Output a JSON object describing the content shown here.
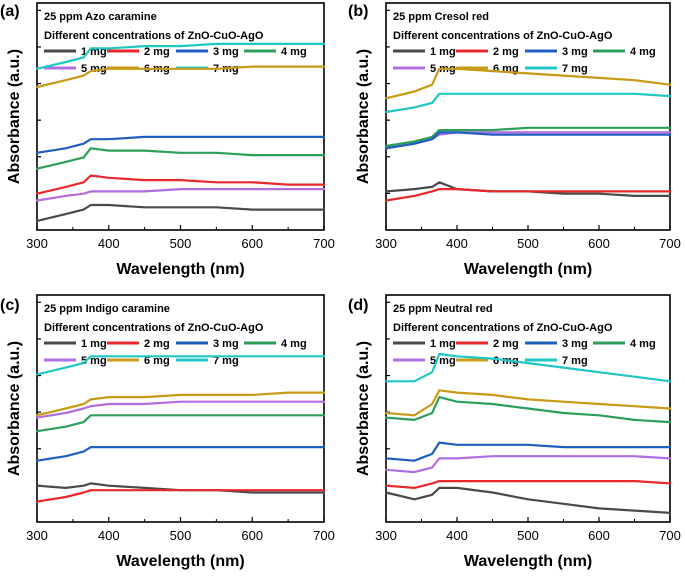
{
  "figure": {
    "xlabel": "Wavelength (nm)",
    "ylabel": "Absorbance (a.u.)",
    "legend_title": "Different concentrations of ZnO-CuO-AgO",
    "series_colors": {
      "1 mg": "#4a4a4a",
      "2 mg": "#e8282b",
      "3 mg": "#1f5fbf",
      "4 mg": "#2e9e5b",
      "5 mg": "#b06fe0",
      "6 mg": "#c89a16",
      "7 mg": "#1fc7c7"
    }
  },
  "chart_data": [
    {
      "type": "line",
      "panel_label": "(a)",
      "title": "25 ppm Azo caramine",
      "xlabel": "Wavelength (nm)",
      "ylabel": "Absorbance (a.u.)",
      "xlim": [
        300,
        700
      ],
      "ylim": [
        0,
        1
      ],
      "xticks": [
        300,
        400,
        500,
        600,
        700
      ],
      "x": [
        300,
        340,
        365,
        375,
        400,
        450,
        500,
        550,
        600,
        650,
        700
      ],
      "series": [
        {
          "name": "1 mg",
          "values": [
            0.04,
            0.07,
            0.09,
            0.11,
            0.11,
            0.1,
            0.1,
            0.1,
            0.09,
            0.09,
            0.09
          ]
        },
        {
          "name": "2 mg",
          "values": [
            0.16,
            0.19,
            0.21,
            0.24,
            0.23,
            0.22,
            0.22,
            0.21,
            0.21,
            0.2,
            0.2
          ]
        },
        {
          "name": "5 mg",
          "values": [
            0.13,
            0.15,
            0.16,
            0.17,
            0.17,
            0.17,
            0.18,
            0.18,
            0.18,
            0.18,
            0.18
          ]
        },
        {
          "name": "4 mg",
          "values": [
            0.27,
            0.3,
            0.32,
            0.36,
            0.35,
            0.35,
            0.34,
            0.34,
            0.33,
            0.33,
            0.33
          ]
        },
        {
          "name": "3 mg",
          "values": [
            0.34,
            0.36,
            0.38,
            0.4,
            0.4,
            0.41,
            0.41,
            0.41,
            0.41,
            0.41,
            0.41
          ]
        },
        {
          "name": "6 mg",
          "values": [
            0.63,
            0.66,
            0.68,
            0.7,
            0.71,
            0.71,
            0.71,
            0.71,
            0.72,
            0.72,
            0.72
          ]
        },
        {
          "name": "7 mg",
          "values": [
            0.71,
            0.74,
            0.76,
            0.8,
            0.8,
            0.81,
            0.81,
            0.82,
            0.82,
            0.82,
            0.82
          ]
        }
      ]
    },
    {
      "type": "line",
      "panel_label": "(b)",
      "title": "25 ppm Cresol red",
      "xlabel": "Wavelength (nm)",
      "ylabel": "Absorbance (a.u.)",
      "xlim": [
        300,
        700
      ],
      "ylim": [
        0,
        1
      ],
      "xticks": [
        300,
        400,
        500,
        600,
        700
      ],
      "x": [
        300,
        340,
        365,
        375,
        400,
        450,
        500,
        550,
        600,
        650,
        700
      ],
      "series": [
        {
          "name": "1 mg",
          "values": [
            0.17,
            0.18,
            0.19,
            0.21,
            0.18,
            0.17,
            0.17,
            0.16,
            0.16,
            0.15,
            0.15
          ]
        },
        {
          "name": "2 mg",
          "values": [
            0.13,
            0.15,
            0.17,
            0.18,
            0.18,
            0.17,
            0.17,
            0.17,
            0.17,
            0.17,
            0.17
          ]
        },
        {
          "name": "5 mg",
          "values": [
            0.36,
            0.38,
            0.4,
            0.42,
            0.43,
            0.43,
            0.43,
            0.43,
            0.43,
            0.43,
            0.43
          ]
        },
        {
          "name": "4 mg",
          "values": [
            0.37,
            0.39,
            0.41,
            0.44,
            0.44,
            0.44,
            0.45,
            0.45,
            0.45,
            0.45,
            0.45
          ]
        },
        {
          "name": "3 mg",
          "values": [
            0.36,
            0.38,
            0.4,
            0.43,
            0.43,
            0.42,
            0.42,
            0.42,
            0.42,
            0.42,
            0.42
          ]
        },
        {
          "name": "6 mg",
          "values": [
            0.58,
            0.61,
            0.64,
            0.71,
            0.71,
            0.7,
            0.69,
            0.68,
            0.67,
            0.66,
            0.64
          ]
        },
        {
          "name": "7 mg",
          "values": [
            0.52,
            0.54,
            0.56,
            0.6,
            0.6,
            0.6,
            0.6,
            0.6,
            0.6,
            0.6,
            0.59
          ]
        }
      ]
    },
    {
      "type": "line",
      "panel_label": "(c)",
      "title": "25 ppm Indigo caramine",
      "xlabel": "Wavelength (nm)",
      "ylabel": "Absorbance (a.u.)",
      "xlim": [
        300,
        700
      ],
      "ylim": [
        0,
        1
      ],
      "xticks": [
        300,
        400,
        500,
        600,
        700
      ],
      "x": [
        300,
        340,
        365,
        375,
        400,
        450,
        500,
        550,
        600,
        650,
        700
      ],
      "series": [
        {
          "name": "1 mg",
          "values": [
            0.16,
            0.15,
            0.16,
            0.17,
            0.16,
            0.15,
            0.14,
            0.14,
            0.13,
            0.13,
            0.13
          ]
        },
        {
          "name": "2 mg",
          "values": [
            0.09,
            0.11,
            0.13,
            0.14,
            0.14,
            0.14,
            0.14,
            0.14,
            0.14,
            0.14,
            0.14
          ]
        },
        {
          "name": "3 mg",
          "values": [
            0.27,
            0.29,
            0.31,
            0.33,
            0.33,
            0.33,
            0.33,
            0.33,
            0.33,
            0.33,
            0.33
          ]
        },
        {
          "name": "4 mg",
          "values": [
            0.4,
            0.42,
            0.44,
            0.47,
            0.47,
            0.47,
            0.47,
            0.47,
            0.47,
            0.47,
            0.47
          ]
        },
        {
          "name": "5 mg",
          "values": [
            0.46,
            0.48,
            0.5,
            0.51,
            0.52,
            0.52,
            0.53,
            0.53,
            0.53,
            0.53,
            0.53
          ]
        },
        {
          "name": "6 mg",
          "values": [
            0.47,
            0.5,
            0.52,
            0.54,
            0.55,
            0.55,
            0.56,
            0.56,
            0.56,
            0.57,
            0.57
          ]
        },
        {
          "name": "7 mg",
          "values": [
            0.65,
            0.68,
            0.7,
            0.73,
            0.73,
            0.73,
            0.73,
            0.73,
            0.73,
            0.73,
            0.73
          ]
        }
      ]
    },
    {
      "type": "line",
      "panel_label": "(d)",
      "title": "25 ppm Neutral red",
      "xlabel": "Wavelength (nm)",
      "ylabel": "Absorbance (a.u.)",
      "xlim": [
        300,
        700
      ],
      "ylim": [
        0,
        1
      ],
      "xticks": [
        300,
        400,
        500,
        600,
        700
      ],
      "x": [
        300,
        340,
        365,
        375,
        400,
        450,
        500,
        550,
        600,
        650,
        700
      ],
      "series": [
        {
          "name": "1 mg",
          "values": [
            0.13,
            0.1,
            0.12,
            0.15,
            0.15,
            0.13,
            0.1,
            0.08,
            0.06,
            0.05,
            0.04
          ]
        },
        {
          "name": "2 mg",
          "values": [
            0.16,
            0.15,
            0.17,
            0.18,
            0.18,
            0.18,
            0.18,
            0.18,
            0.18,
            0.18,
            0.17
          ]
        },
        {
          "name": "5 mg",
          "values": [
            0.23,
            0.22,
            0.24,
            0.28,
            0.28,
            0.29,
            0.29,
            0.29,
            0.29,
            0.29,
            0.28
          ]
        },
        {
          "name": "3 mg",
          "values": [
            0.28,
            0.27,
            0.3,
            0.35,
            0.34,
            0.34,
            0.34,
            0.33,
            0.33,
            0.33,
            0.33
          ]
        },
        {
          "name": "4 mg",
          "values": [
            0.46,
            0.45,
            0.48,
            0.55,
            0.53,
            0.52,
            0.5,
            0.48,
            0.47,
            0.45,
            0.44
          ]
        },
        {
          "name": "6 mg",
          "values": [
            0.48,
            0.47,
            0.52,
            0.58,
            0.57,
            0.56,
            0.54,
            0.53,
            0.52,
            0.51,
            0.5
          ]
        },
        {
          "name": "7 mg",
          "values": [
            0.62,
            0.62,
            0.66,
            0.74,
            0.73,
            0.72,
            0.7,
            0.68,
            0.66,
            0.64,
            0.62
          ]
        }
      ]
    }
  ]
}
